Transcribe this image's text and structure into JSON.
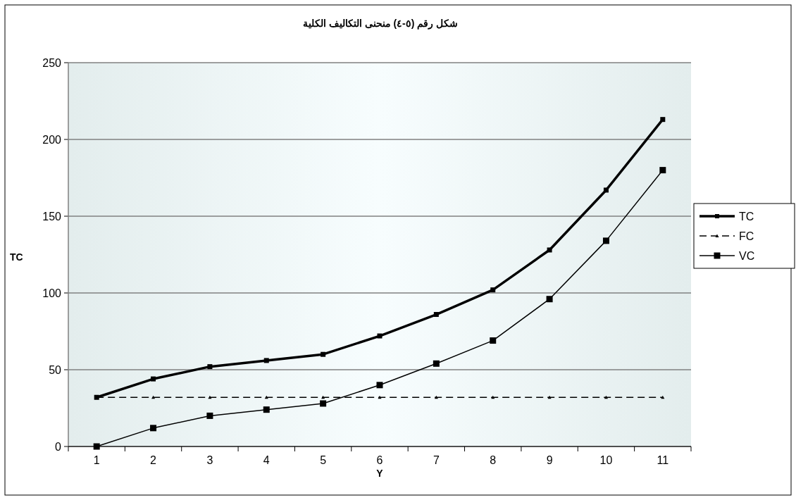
{
  "chart_data": {
    "type": "line",
    "title": "شكل رقم (٥-٤) منحنى التكاليف الكلية",
    "xlabel": "Y",
    "ylabel": "TC",
    "categories": [
      "1",
      "2",
      "3",
      "4",
      "5",
      "6",
      "7",
      "8",
      "9",
      "10",
      "11"
    ],
    "series": [
      {
        "name": "TC",
        "color": "#000000",
        "marker": "square",
        "line_style": "solid",
        "values": [
          32,
          44,
          52,
          56,
          60,
          72,
          86,
          102,
          128,
          167,
          213
        ]
      },
      {
        "name": "FC",
        "color": "#000000",
        "marker": "triangle",
        "line_style": "dashed",
        "values": [
          32,
          32,
          32,
          32,
          32,
          32,
          32,
          32,
          32,
          32,
          32
        ]
      },
      {
        "name": "VC",
        "color": "#000000",
        "marker": "square",
        "line_style": "solid",
        "values": [
          0,
          12,
          20,
          24,
          28,
          40,
          54,
          69,
          96,
          134,
          180
        ]
      }
    ],
    "ylim": [
      0,
      250
    ],
    "yticks": [
      0,
      50,
      100,
      150,
      200,
      250
    ],
    "grid": "y",
    "legend": "right"
  }
}
